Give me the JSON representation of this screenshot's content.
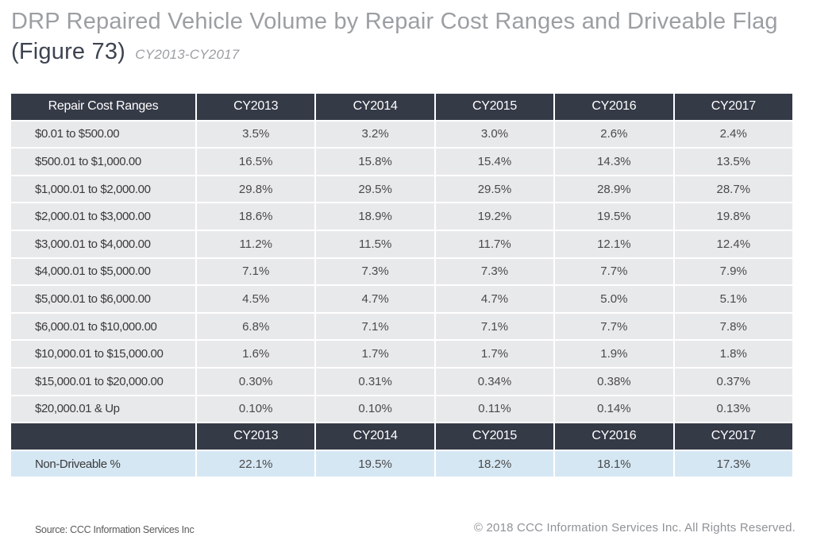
{
  "title": {
    "main": "DRP Repaired Vehicle Volume by Repair Cost Ranges and Driveable Flag ",
    "figure": "(Figure 73)",
    "years": "CY2013-CY2017"
  },
  "chart_data": {
    "type": "table",
    "columns": [
      "Repair Cost Ranges",
      "CY2013",
      "CY2014",
      "CY2015",
      "CY2016",
      "CY2017"
    ],
    "rows": [
      [
        "$0.01 to $500.00",
        "3.5%",
        "3.2%",
        "3.0%",
        "2.6%",
        "2.4%"
      ],
      [
        "$500.01 to $1,000.00",
        "16.5%",
        "15.8%",
        "15.4%",
        "14.3%",
        "13.5%"
      ],
      [
        "$1,000.01 to $2,000.00",
        "29.8%",
        "29.5%",
        "29.5%",
        "28.9%",
        "28.7%"
      ],
      [
        "$2,000.01 to $3,000.00",
        "18.6%",
        "18.9%",
        "19.2%",
        "19.5%",
        "19.8%"
      ],
      [
        "$3,000.01 to $4,000.00",
        "11.2%",
        "11.5%",
        "11.7%",
        "12.1%",
        "12.4%"
      ],
      [
        "$4,000.01 to $5,000.00",
        "7.1%",
        "7.3%",
        "7.3%",
        "7.7%",
        "7.9%"
      ],
      [
        "$5,000.01 to $6,000.00",
        "4.5%",
        "4.7%",
        "4.7%",
        "5.0%",
        "5.1%"
      ],
      [
        "$6,000.01 to $10,000.00",
        "6.8%",
        "7.1%",
        "7.1%",
        "7.7%",
        "7.8%"
      ],
      [
        "$10,000.01 to $15,000.00",
        "1.6%",
        "1.7%",
        "1.7%",
        "1.9%",
        "1.8%"
      ],
      [
        "$15,000.01 to $20,000.00",
        "0.30%",
        "0.31%",
        "0.34%",
        "0.38%",
        "0.37%"
      ],
      [
        "$20,000.01 & Up",
        "0.10%",
        "0.10%",
        "0.11%",
        "0.14%",
        "0.13%"
      ]
    ],
    "driveable": {
      "columns": [
        "",
        "CY2013",
        "CY2014",
        "CY2015",
        "CY2016",
        "CY2017"
      ],
      "row": [
        "Non-Driveable %",
        "22.1%",
        "19.5%",
        "18.2%",
        "18.1%",
        "17.3%"
      ]
    }
  },
  "footer": {
    "source": "Source:  CCC Information Services Inc",
    "copyright": "© 2018 CCC Information Services Inc. All Rights Reserved."
  },
  "colors": {
    "header_bg": "#353a47",
    "row_bg": "#e8e9eb",
    "highlight_row_bg": "#d6e7f4",
    "title_gray": "#9b9fa3"
  }
}
